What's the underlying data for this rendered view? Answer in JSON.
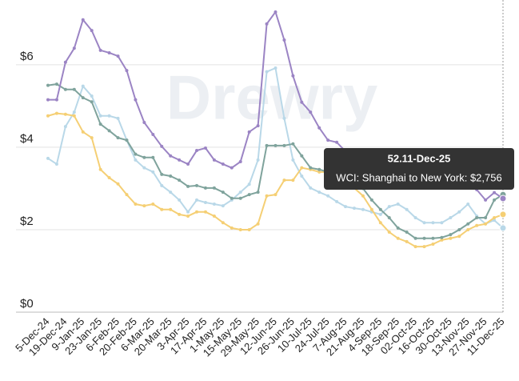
{
  "chart_data": {
    "type": "line",
    "watermark": "Drewry",
    "categories": [
      "5-Dec-24",
      null,
      "19-Dec-24",
      null,
      "9-Jan-25",
      null,
      "23-Jan-25",
      null,
      "6-Feb-25",
      null,
      "20-Feb-25",
      null,
      "6-Mar-25",
      null,
      "20-Mar-25",
      null,
      "3-Apr-25",
      null,
      "17-Apr-25",
      null,
      "1-May-25",
      null,
      "15-May-25",
      null,
      "29-May-25",
      null,
      "12-Jun-25",
      null,
      "26-Jun-25",
      null,
      "10-Jul-25",
      null,
      "24-Jul-25",
      null,
      "7-Aug-25",
      null,
      "21-Aug-25",
      null,
      "4-Sep-25",
      null,
      "18-Sep-25",
      null,
      "02-Oct-25",
      null,
      "16-Oct-25",
      null,
      "30-Oct-25",
      null,
      "13-Nov-25",
      null,
      "27-Nov-25",
      null,
      "11-Dec-25"
    ],
    "series": [
      {
        "color": "#b9d8e8",
        "values": [
          3.73,
          3.59,
          4.5,
          4.85,
          5.48,
          5.24,
          4.76,
          4.76,
          4.7,
          4.17,
          3.69,
          3.5,
          3.4,
          3.07,
          2.91,
          2.72,
          2.43,
          2.72,
          2.66,
          2.62,
          2.58,
          2.72,
          2.91,
          3.1,
          3.69,
          5.83,
          5.92,
          4.7,
          3.69,
          3.3,
          3.01,
          2.91,
          2.82,
          2.68,
          2.56,
          2.52,
          2.49,
          2.43,
          2.37,
          2.56,
          2.62,
          2.49,
          2.29,
          2.17,
          2.17,
          2.17,
          2.29,
          2.43,
          2.62,
          2.33,
          2.14,
          2.23,
          2.04
        ]
      },
      {
        "color": "#f5cf74",
        "values": [
          4.76,
          4.82,
          4.8,
          4.76,
          4.37,
          4.23,
          3.46,
          3.26,
          3.11,
          2.85,
          2.62,
          2.58,
          2.62,
          2.49,
          2.49,
          2.37,
          2.33,
          2.43,
          2.43,
          2.33,
          2.17,
          2.04,
          2.0,
          2.0,
          2.14,
          2.82,
          2.85,
          3.2,
          3.2,
          3.5,
          3.46,
          3.4,
          3.4,
          3.4,
          3.26,
          3.01,
          2.82,
          2.49,
          2.17,
          1.94,
          1.79,
          1.71,
          1.59,
          1.59,
          1.65,
          1.75,
          1.79,
          1.84,
          2.0,
          2.1,
          2.14,
          2.29,
          2.37
        ]
      },
      {
        "color": "#7fa39c",
        "values": [
          5.5,
          5.53,
          5.4,
          5.4,
          5.2,
          5.1,
          4.56,
          4.4,
          4.23,
          4.17,
          3.83,
          3.75,
          3.75,
          3.34,
          3.3,
          3.2,
          3.05,
          3.07,
          3.01,
          3.01,
          2.91,
          2.76,
          2.76,
          2.85,
          2.91,
          4.04,
          4.04,
          4.04,
          4.08,
          3.79,
          3.5,
          3.46,
          3.4,
          3.4,
          3.34,
          3.2,
          3.0,
          2.72,
          2.49,
          2.29,
          2.04,
          1.94,
          1.79,
          1.79,
          1.79,
          1.81,
          1.88,
          2.0,
          2.14,
          2.29,
          2.29,
          2.72,
          2.85
        ]
      },
      {
        "color": "#9b84c4",
        "values": [
          5.15,
          5.15,
          6.06,
          6.4,
          7.09,
          6.83,
          6.35,
          6.29,
          6.21,
          5.86,
          5.15,
          4.6,
          4.31,
          4.02,
          3.79,
          3.69,
          3.59,
          3.92,
          3.98,
          3.69,
          3.59,
          3.5,
          3.65,
          4.37,
          4.52,
          6.99,
          7.28,
          6.6,
          5.73,
          5.09,
          4.85,
          4.47,
          4.17,
          4.12,
          3.9,
          3.7,
          3.5,
          3.4,
          3.3,
          3.3,
          3.25,
          3.2,
          3.2,
          3.15,
          3.1,
          3.1,
          3.05,
          3.05,
          3.1,
          2.97,
          2.72,
          2.9,
          2.756
        ]
      }
    ],
    "ylim": [
      0,
      7.57
    ],
    "yticks": [
      {
        "value": 0,
        "label": "$0"
      },
      {
        "value": 2,
        "label": "$2"
      },
      {
        "value": 4,
        "label": "$4"
      },
      {
        "value": 6,
        "label": "$6"
      }
    ],
    "grid": true,
    "tooltip": {
      "title": "52.11-Dec-25",
      "text": "WCI: Shanghai to New York: $2,756"
    }
  }
}
